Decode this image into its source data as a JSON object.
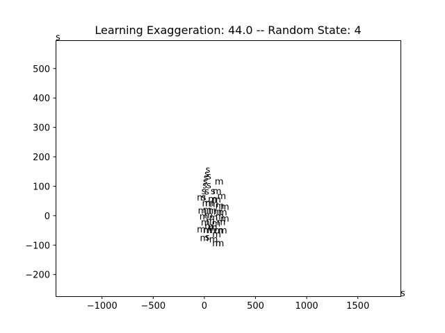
{
  "chart_data": {
    "type": "scatter",
    "title": "Learning Exaggeration: 44.0 -- Random State: 4",
    "xlabel": "",
    "ylabel": "",
    "xlim": [
      -1450,
      1920
    ],
    "ylim": [
      -275,
      595
    ],
    "xticks": [
      -1000,
      -500,
      0,
      500,
      1000,
      1500
    ],
    "yticks": [
      -200,
      -100,
      0,
      100,
      200,
      300,
      400,
      500
    ],
    "xtick_labels": [
      "−1000",
      "−500",
      "0",
      "500",
      "1000",
      "1500"
    ],
    "ytick_labels": [
      "−200",
      "−100",
      "0",
      "100",
      "200",
      "300",
      "400",
      "500"
    ],
    "grid": false,
    "markers": "text",
    "points": [
      {
        "label": "s",
        "x": -1450,
        "y": 595
      },
      {
        "label": "s",
        "x": 1920,
        "y": -275
      },
      {
        "label": "s",
        "x": 15,
        "y": 145
      },
      {
        "label": "s",
        "x": 5,
        "y": 130
      },
      {
        "label": "s",
        "x": -5,
        "y": 118
      },
      {
        "label": "s",
        "x": 25,
        "y": 122
      },
      {
        "label": "s",
        "x": -10,
        "y": 105
      },
      {
        "label": "m",
        "x": 105,
        "y": 105
      },
      {
        "label": "s",
        "x": -15,
        "y": 92
      },
      {
        "label": "s",
        "x": 25,
        "y": 92
      },
      {
        "label": "s",
        "x": 65,
        "y": 72
      },
      {
        "label": "m",
        "x": 85,
        "y": 72
      },
      {
        "label": "s",
        "x": -25,
        "y": 72
      },
      {
        "label": "s",
        "x": 5,
        "y": 70
      },
      {
        "label": "m",
        "x": -70,
        "y": 50
      },
      {
        "label": "s",
        "x": -25,
        "y": 50
      },
      {
        "label": "m",
        "x": 40,
        "y": 45
      },
      {
        "label": "m",
        "x": 130,
        "y": 55
      },
      {
        "label": "m",
        "x": 80,
        "y": 43
      },
      {
        "label": "m",
        "x": -20,
        "y": 30
      },
      {
        "label": "m",
        "x": 10,
        "y": 32
      },
      {
        "label": "m",
        "x": 55,
        "y": 28
      },
      {
        "label": "m",
        "x": 110,
        "y": 22
      },
      {
        "label": "m",
        "x": 160,
        "y": 18
      },
      {
        "label": "m",
        "x": -60,
        "y": 5
      },
      {
        "label": "m",
        "x": -10,
        "y": 8
      },
      {
        "label": "m",
        "x": 40,
        "y": 5
      },
      {
        "label": "m",
        "x": 90,
        "y": 2
      },
      {
        "label": "m",
        "x": 140,
        "y": 0
      },
      {
        "label": "m",
        "x": -45,
        "y": -15
      },
      {
        "label": "m",
        "x": 0,
        "y": -10
      },
      {
        "label": "m",
        "x": 50,
        "y": -18
      },
      {
        "label": "m",
        "x": 110,
        "y": -15
      },
      {
        "label": "m",
        "x": 160,
        "y": -22
      },
      {
        "label": "m",
        "x": -30,
        "y": -35
      },
      {
        "label": "m",
        "x": 20,
        "y": -30
      },
      {
        "label": "m",
        "x": 75,
        "y": -38
      },
      {
        "label": "m",
        "x": 125,
        "y": -33
      },
      {
        "label": "m",
        "x": 5,
        "y": -48
      },
      {
        "label": "m",
        "x": 45,
        "y": -52
      },
      {
        "label": "m",
        "x": -70,
        "y": -58
      },
      {
        "label": "m",
        "x": -10,
        "y": -60
      },
      {
        "label": "m",
        "x": 30,
        "y": -60
      },
      {
        "label": "m",
        "x": 100,
        "y": -62
      },
      {
        "label": "m",
        "x": 140,
        "y": -62
      },
      {
        "label": "m",
        "x": 80,
        "y": -75
      },
      {
        "label": "m",
        "x": -40,
        "y": -88
      },
      {
        "label": "s",
        "x": 10,
        "y": -85
      },
      {
        "label": "m",
        "x": 50,
        "y": -92
      },
      {
        "label": "m",
        "x": 80,
        "y": -105
      },
      {
        "label": "m",
        "x": 110,
        "y": -105
      }
    ]
  }
}
